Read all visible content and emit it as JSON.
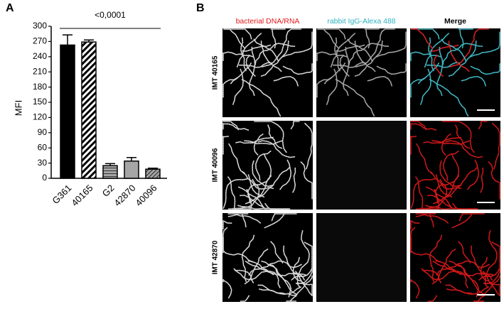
{
  "panel_labels": [
    "A",
    "B"
  ],
  "chart_data": {
    "type": "bar",
    "ylabel": "MFI",
    "categories": [
      "G361",
      "40165",
      "G2",
      "42870",
      "40096"
    ],
    "values": [
      263,
      269,
      25,
      34,
      18
    ],
    "errors": [
      20,
      4,
      4,
      7,
      2
    ],
    "colors": [
      "#000000",
      "#ffffff",
      "#a6a6a6",
      "#a6a6a6",
      "#a6a6a6"
    ],
    "hatch": [
      "none",
      "diagonal",
      "horizontal",
      "none",
      "diagonal"
    ],
    "ylim": [
      0,
      300
    ],
    "yticks": [
      0,
      30,
      60,
      90,
      120,
      150,
      180,
      210,
      240,
      270,
      300
    ],
    "annotation": "<0,0001"
  },
  "panel_b": {
    "columns": [
      "bacterial DNA/RNA",
      "rabbit IgG-Alexa 488",
      "Merge"
    ],
    "rows": [
      "IMT 40165",
      "IMT 40096",
      "IMT 42870"
    ]
  }
}
